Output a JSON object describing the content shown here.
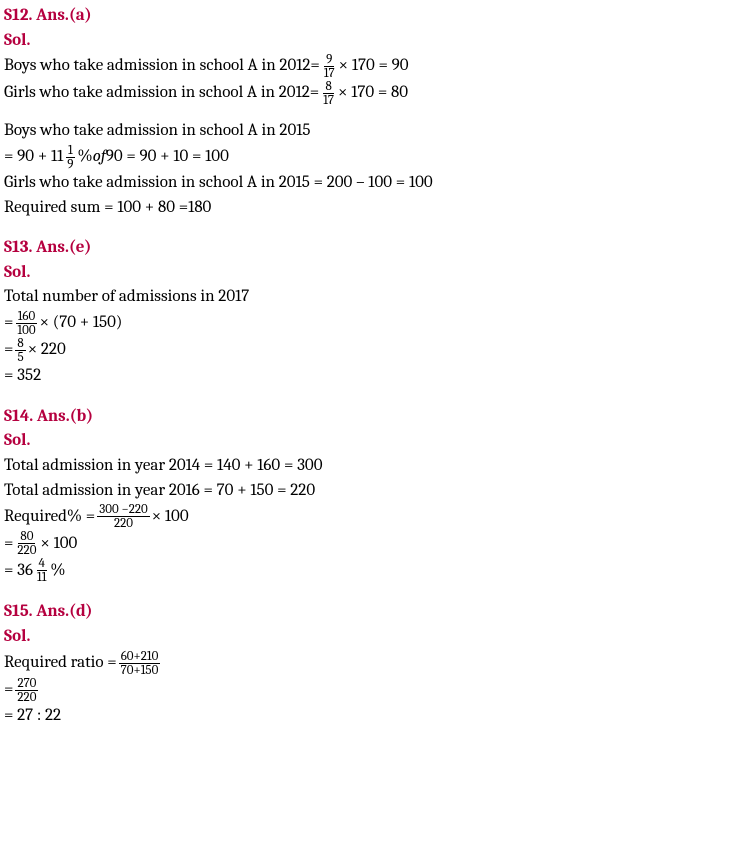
{
  "s12": {
    "header": "S12. Ans.(a)",
    "sol": "Sol.",
    "line1_pre": "Boys who take admission in school A in 2012=",
    "line1_frac_num": "9",
    "line1_frac_den": "17",
    "line1_mid": "× 170 = 90",
    "line2_pre": "Girls who take admission in school A in 2012=",
    "line2_frac_num": "8",
    "line2_frac_den": "17",
    "line2_mid": "× 170 = 80",
    "line3": "Boys who take admission in school A in 2015",
    "line4_pre": "= 90 + 11",
    "line4_frac_num": "1",
    "line4_frac_den": "9",
    "line4_mid1": "% ",
    "line4_of": "of",
    "line4_mid2": " 90 = 90 + 10 = 100",
    "line5": "Girls who take admission in school A in 2015 = 200 – 100 = 100",
    "line6": "Required sum = 100 + 80 =180"
  },
  "s13": {
    "header": "S13. Ans.(e)",
    "sol": "Sol.",
    "line1": "Total number of admissions in 2017",
    "line2_pre": "= ",
    "line2_frac_num": "160",
    "line2_frac_den": "100",
    "line2_mid": "× (70 + 150)",
    "line3_pre": "= ",
    "line3_frac_num": "8",
    "line3_frac_den": "5",
    "line3_mid": "× 220",
    "line4": "= 352"
  },
  "s14": {
    "header": "S14. Ans.(b)",
    "sol": "Sol.",
    "line1": "Total admission in year 2014 = 140 + 160 = 300",
    "line2": "Total admission in year 2016 = 70 + 150 = 220",
    "line3_pre": "Required% = ",
    "line3_frac_num": "300 −220",
    "line3_frac_den": "220",
    "line3_mid": "× 100",
    "line4_pre": "= ",
    "line4_frac_num": "80",
    "line4_frac_den": "220",
    "line4_mid": "× 100",
    "line5_pre": "= 36",
    "line5_frac_num": "4",
    "line5_frac_den": "11",
    "line5_mid": "%"
  },
  "s15": {
    "header": "S15. Ans.(d)",
    "sol": "Sol.",
    "line1_pre": "Required ratio = ",
    "line1_frac_num": "60+210",
    "line1_frac_den": "70+150",
    "line2_pre": "= ",
    "line2_frac_num": "270",
    "line2_frac_den": "220",
    "line3": "= 27 : 22"
  }
}
